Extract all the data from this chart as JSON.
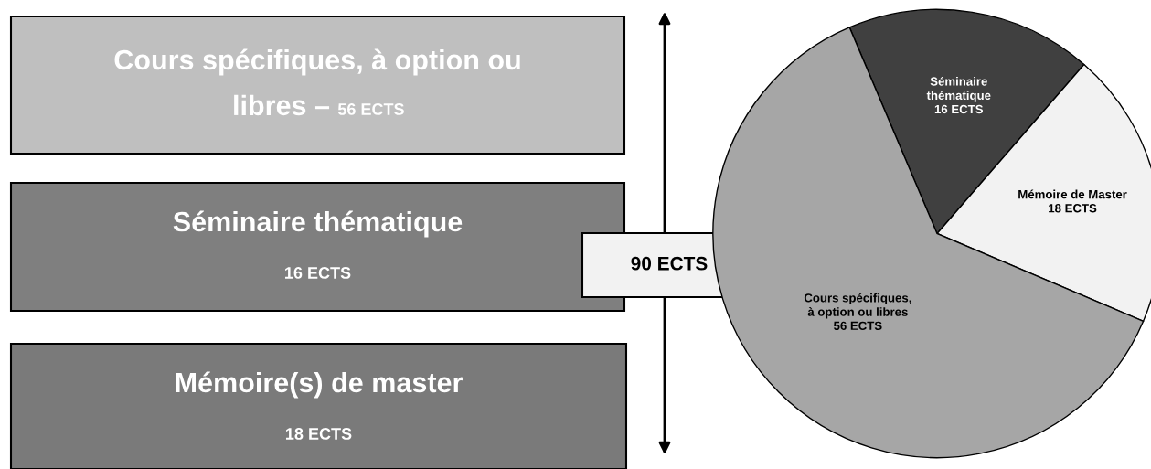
{
  "chart_data": [
    {
      "type": "other",
      "colors": [
        "#bfbfbf",
        "#7f7f7f",
        "#7a7a7a"
      ],
      "annotations": [
        "Cours spécifiques, à option ou\nlibres –",
        "56 ECTS",
        "Séminaire thématique",
        "16 ECTS",
        "Mémoire(s) de master",
        "18 ECTS",
        "90 ECTS"
      ]
    },
    {
      "type": "pie",
      "categories": [
        "Séminaire\nthématique",
        "Mémoire de Master",
        "Cours spécifiques,\nà option ou libres"
      ],
      "values": [
        16,
        18,
        56
      ],
      "colors": [
        "#404040",
        "#f2f2f2",
        "#a6a6a6"
      ],
      "value_labels": [
        "16 ECTS",
        "18 ECTS",
        "56 ECTS"
      ]
    }
  ]
}
